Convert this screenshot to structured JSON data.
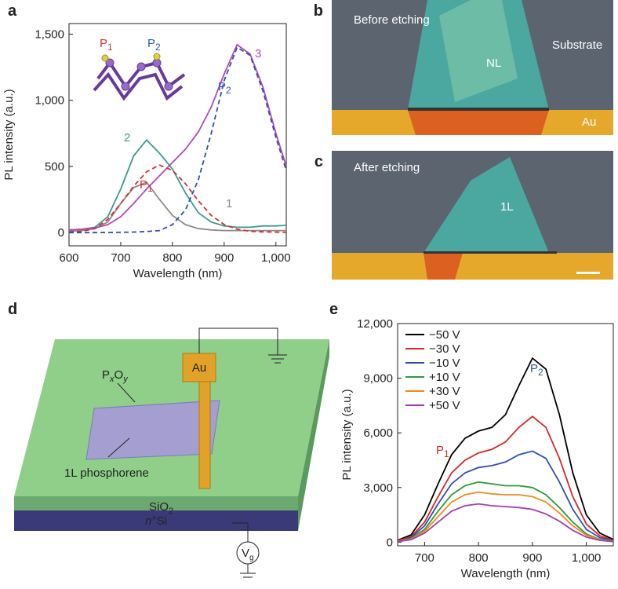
{
  "chart_data": [
    {
      "type": "line",
      "panel": "a",
      "xlabel": "Wavelength (nm)",
      "ylabel": "PL intensity (a.u.)",
      "xlim": [
        600,
        1020
      ],
      "xticks": [
        600,
        700,
        800,
        900,
        {
          "value": 1000,
          "label": "1,000"
        }
      ],
      "ylim": [
        -100,
        1580
      ],
      "yticks": [
        0,
        500,
        {
          "value": 1000,
          "label": "1,000"
        },
        {
          "value": 1500,
          "label": "1,500"
        }
      ],
      "x": [
        600,
        625,
        650,
        675,
        700,
        725,
        750,
        775,
        800,
        825,
        850,
        875,
        900,
        925,
        950,
        975,
        1000,
        1020
      ],
      "series": [
        {
          "name": "1",
          "color": "#8c8c8c",
          "values": [
            10,
            15,
            30,
            80,
            220,
            340,
            380,
            250,
            130,
            60,
            30,
            20,
            15,
            15,
            15,
            15,
            15,
            15
          ]
        },
        {
          "name": "2",
          "color": "#3c9a8c",
          "values": [
            20,
            25,
            40,
            120,
            330,
            580,
            700,
            600,
            480,
            300,
            150,
            80,
            50,
            40,
            40,
            50,
            50,
            55
          ]
        },
        {
          "name": "3",
          "color": "#b04ab8",
          "values": [
            20,
            25,
            35,
            60,
            120,
            220,
            330,
            430,
            530,
            630,
            760,
            950,
            1200,
            1420,
            1350,
            1100,
            750,
            500
          ]
        },
        {
          "color": "#d93030",
          "style": "dashed",
          "values": [
            5,
            10,
            30,
            100,
            220,
            350,
            460,
            510,
            470,
            370,
            240,
            130,
            60,
            25,
            10,
            5,
            3,
            2
          ]
        },
        {
          "color": "#3050b0",
          "style": "dashed",
          "values": [
            0,
            0,
            0,
            1,
            2,
            4,
            8,
            15,
            60,
            170,
            400,
            750,
            1150,
            1400,
            1340,
            1070,
            720,
            470
          ]
        }
      ],
      "annotations": [
        {
          "text": "P",
          "sub": "1",
          "color": "#d93030"
        },
        {
          "text": "P",
          "sub": "2",
          "color": "#3050b0"
        },
        {
          "text": "P",
          "sub": "1",
          "color": "#d93030"
        },
        {
          "text": "P",
          "sub": "2",
          "color": "#3050b0"
        }
      ]
    },
    {
      "type": "line",
      "panel": "e",
      "xlabel": "Wavelength (nm)",
      "ylabel": "PL intensity (a.u.)",
      "xlim": [
        650,
        1050
      ],
      "xticks": [
        700,
        800,
        900,
        {
          "value": 1000,
          "label": "1,000"
        }
      ],
      "ylim": [
        -200,
        12000
      ],
      "yticks": [
        0,
        {
          "value": 3000,
          "label": "3,000"
        },
        {
          "value": 6000,
          "label": "6,000"
        },
        {
          "value": 9000,
          "label": "9,000"
        },
        {
          "value": 12000,
          "label": "12,000"
        }
      ],
      "legend": "upper left",
      "x": [
        650,
        675,
        700,
        725,
        750,
        775,
        800,
        825,
        850,
        875,
        900,
        925,
        950,
        975,
        1000,
        1025,
        1050
      ],
      "series": [
        {
          "name": "−50 V",
          "color": "#000000",
          "values": [
            100,
            400,
            1500,
            3200,
            4800,
            5700,
            6100,
            6300,
            7000,
            8600,
            10100,
            9500,
            7000,
            3800,
            1500,
            500,
            150
          ]
        },
        {
          "name": "−30 V",
          "color": "#d62728",
          "values": [
            80,
            300,
            1100,
            2500,
            3800,
            4500,
            4900,
            5100,
            5500,
            6300,
            6900,
            6300,
            4600,
            2500,
            1000,
            350,
            100
          ]
        },
        {
          "name": "−10 V",
          "color": "#3050b0",
          "values": [
            60,
            250,
            900,
            2100,
            3200,
            3800,
            4100,
            4200,
            4400,
            4800,
            5000,
            4600,
            3300,
            1800,
            700,
            250,
            80
          ]
        },
        {
          "name": "+10 V",
          "color": "#2e9a3a",
          "values": [
            50,
            200,
            700,
            1700,
            2600,
            3100,
            3300,
            3200,
            3100,
            3100,
            3000,
            2600,
            1900,
            1100,
            450,
            150,
            50
          ]
        },
        {
          "name": "+30 V",
          "color": "#f08a1e",
          "values": [
            40,
            170,
            600,
            1400,
            2200,
            2600,
            2750,
            2650,
            2600,
            2600,
            2500,
            2200,
            1600,
            900,
            380,
            130,
            40
          ]
        },
        {
          "name": "+50 V",
          "color": "#a040b0",
          "values": [
            30,
            140,
            500,
            1100,
            1700,
            2000,
            2100,
            2000,
            1950,
            1900,
            1800,
            1550,
            1150,
            650,
            280,
            100,
            30
          ]
        }
      ],
      "annotations": [
        {
          "text": "P",
          "sub": "1",
          "color": "#d62728"
        },
        {
          "text": "P",
          "sub": "2",
          "color": "#3050b0"
        }
      ]
    }
  ],
  "panels": {
    "b": {
      "label": "b",
      "texts": [
        "Before etching",
        "NL",
        "Substrate",
        "Au"
      ]
    },
    "c": {
      "label": "c",
      "texts": [
        "After etching",
        "1L"
      ]
    },
    "d": {
      "label": "d",
      "au": "Au",
      "oxide": {
        "p": "P",
        "x": "x",
        "o": "O",
        "y": "y"
      },
      "layer": "1L phosphorene",
      "sio2": {
        "text": "SiO",
        "sub": "2"
      },
      "si": {
        "sup": "n",
        "plus": "+",
        "text": "Si"
      },
      "vg": {
        "text": "V",
        "sub": "g"
      }
    }
  }
}
